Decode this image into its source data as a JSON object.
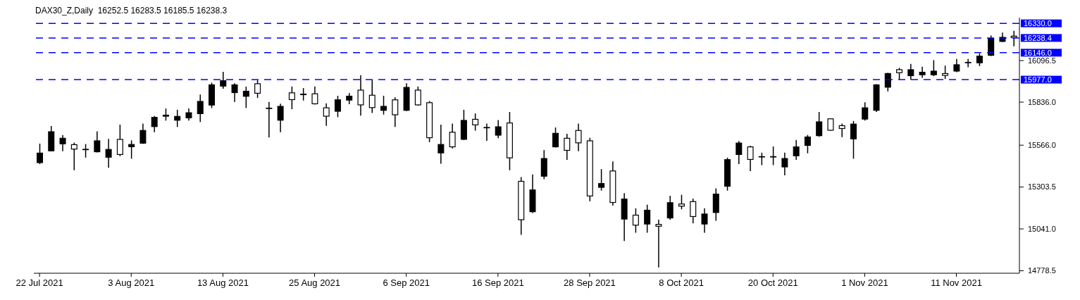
{
  "chart_data": {
    "type": "candlestick",
    "title": "DAX30_Z,Daily  16252.5 16283.5 16185.5 16238.3",
    "categories": [
      "22 Jul 2021",
      null,
      null,
      null,
      null,
      null,
      null,
      null,
      "3 Aug 2021",
      null,
      null,
      null,
      null,
      null,
      null,
      null,
      "13 Aug 2021",
      null,
      null,
      null,
      null,
      null,
      null,
      null,
      "25 Aug 2021",
      null,
      null,
      null,
      null,
      null,
      null,
      null,
      "6 Sep 2021",
      null,
      null,
      null,
      null,
      null,
      null,
      null,
      "16 Sep 2021",
      null,
      null,
      null,
      null,
      null,
      null,
      null,
      "28 Sep 2021",
      null,
      null,
      null,
      null,
      null,
      null,
      null,
      "8 Oct 2021",
      null,
      null,
      null,
      null,
      null,
      null,
      null,
      "20 Oct 2021",
      null,
      null,
      null,
      null,
      null,
      null,
      null,
      "1 Nov 2021",
      null,
      null,
      null,
      null,
      null,
      null,
      null,
      "11 Nov 2021",
      null,
      null,
      null,
      null,
      null
    ],
    "ohlc": [
      [
        15454,
        15576,
        15447,
        15519
      ],
      [
        15528,
        15686,
        15528,
        15653
      ],
      [
        15572,
        15630,
        15528,
        15612
      ],
      [
        15572,
        15582,
        15409,
        15539
      ],
      [
        15543,
        15573,
        15488,
        15541
      ],
      [
        15522,
        15653,
        15520,
        15596
      ],
      [
        15488,
        15605,
        15424,
        15542
      ],
      [
        15605,
        15695,
        15497,
        15505
      ],
      [
        15554,
        15596,
        15481,
        15573
      ],
      [
        15576,
        15701,
        15574,
        15661
      ],
      [
        15680,
        15749,
        15647,
        15743
      ],
      [
        15745,
        15796,
        15720,
        15757
      ],
      [
        15720,
        15788,
        15680,
        15749
      ],
      [
        15735,
        15796,
        15720,
        15772
      ],
      [
        15761,
        15884,
        15711,
        15843
      ],
      [
        15815,
        15958,
        15799,
        15947
      ],
      [
        15934,
        16026,
        15920,
        15973
      ],
      [
        15893,
        15954,
        15837,
        15947
      ],
      [
        15870,
        15934,
        15799,
        15907
      ],
      [
        15954,
        15974,
        15862,
        15889
      ],
      [
        15801,
        15837,
        15614,
        15799
      ],
      [
        15720,
        15826,
        15647,
        15812
      ],
      [
        15897,
        15934,
        15792,
        15849
      ],
      [
        15880,
        15924,
        15846,
        15889
      ],
      [
        15891,
        15934,
        15821,
        15823
      ],
      [
        15803,
        15828,
        15687,
        15745
      ],
      [
        15776,
        15876,
        15742,
        15853
      ],
      [
        15846,
        15893,
        15823,
        15876
      ],
      [
        15914,
        16005,
        15751,
        15816
      ],
      [
        15882,
        15974,
        15768,
        15799
      ],
      [
        15782,
        15876,
        15758,
        15812
      ],
      [
        15853,
        15866,
        15680,
        15754
      ],
      [
        15782,
        15954,
        15780,
        15931
      ],
      [
        15914,
        15934,
        15814,
        15816
      ],
      [
        15835,
        15843,
        15585,
        15610
      ],
      [
        15515,
        15695,
        15450,
        15573
      ],
      [
        15650,
        15701,
        15546,
        15553
      ],
      [
        15600,
        15788,
        15598,
        15724
      ],
      [
        15731,
        15765,
        15657,
        15691
      ],
      [
        15680,
        15701,
        15593,
        15678
      ],
      [
        15626,
        15724,
        15610,
        15684
      ],
      [
        15708,
        15774,
        15409,
        15484
      ],
      [
        15342,
        15366,
        15004,
        15096
      ],
      [
        15146,
        15382,
        15141,
        15288
      ],
      [
        15369,
        15535,
        15353,
        15485
      ],
      [
        15553,
        15677,
        15551,
        15643
      ],
      [
        15612,
        15637,
        15474,
        15531
      ],
      [
        15661,
        15701,
        15528,
        15578
      ],
      [
        15596,
        15612,
        15214,
        15245
      ],
      [
        15299,
        15416,
        15281,
        15328
      ],
      [
        15407,
        15464,
        15187,
        15204
      ],
      [
        15100,
        15265,
        14965,
        15231
      ],
      [
        15130,
        15170,
        15017,
        15062
      ],
      [
        15069,
        15193,
        15017,
        15161
      ],
      [
        15072,
        15099,
        14799,
        15055
      ],
      [
        15107,
        15249,
        15099,
        15208
      ],
      [
        15200,
        15255,
        15164,
        15181
      ],
      [
        15215,
        15231,
        15076,
        15116
      ],
      [
        15069,
        15170,
        15017,
        15137
      ],
      [
        15141,
        15295,
        15092,
        15262
      ],
      [
        15306,
        15488,
        15281,
        15478
      ],
      [
        15505,
        15592,
        15447,
        15582
      ],
      [
        15558,
        15562,
        15403,
        15474
      ],
      [
        15497,
        15519,
        15441,
        15495
      ],
      [
        15495,
        15558,
        15441,
        15497
      ],
      [
        15427,
        15519,
        15377,
        15485
      ],
      [
        15497,
        15599,
        15474,
        15558
      ],
      [
        15562,
        15630,
        15515,
        15620
      ],
      [
        15623,
        15774,
        15619,
        15715
      ],
      [
        15734,
        15734,
        15657,
        15657
      ],
      [
        15691,
        15701,
        15616,
        15668
      ],
      [
        15603,
        15718,
        15481,
        15701
      ],
      [
        15727,
        15835,
        15720,
        15803
      ],
      [
        15782,
        15949,
        15774,
        15947
      ],
      [
        15927,
        16020,
        15903,
        16018
      ],
      [
        16042,
        16051,
        15977,
        16018
      ],
      [
        15999,
        16076,
        15977,
        16042
      ],
      [
        16005,
        16058,
        15988,
        16026
      ],
      [
        16005,
        16099,
        15999,
        16033
      ],
      [
        16018,
        16065,
        15981,
        16001
      ],
      [
        16028,
        16107,
        16024,
        16073
      ],
      [
        16086,
        16107,
        16055,
        16088
      ],
      [
        16080,
        16141,
        16062,
        16127
      ],
      [
        16127,
        16254,
        16125,
        16238
      ],
      [
        16214,
        16272,
        16212,
        16245
      ],
      [
        16252.5,
        16283.5,
        16185.5,
        16238.3
      ]
    ],
    "color": "#000000",
    "ylim": [
      14763,
      16366
    ],
    "yticks": [
      {
        "value": 14778.5,
        "label": "14778.5"
      },
      {
        "value": 15041,
        "label": "15041.0"
      },
      {
        "value": 15303.5,
        "label": "15303.5"
      },
      {
        "value": 15566,
        "label": "15566.0"
      },
      {
        "value": 15836,
        "label": "15836.0"
      },
      {
        "value": 16096.5,
        "label": "16096.5"
      }
    ],
    "ref_lines": [
      {
        "axis": "y",
        "value": 16330,
        "label": "16330.0",
        "color": "#0000ff",
        "line_style": "dashed"
      },
      {
        "axis": "y",
        "value": 16238.4,
        "label": "16238.4",
        "color": "#0000ff",
        "line_style": "dashed"
      },
      {
        "axis": "y",
        "value": 16146,
        "label": "16146.0",
        "color": "#0000ff",
        "line_style": "dashed"
      },
      {
        "axis": "y",
        "value": 15977,
        "label": "15977.0",
        "color": "#0000ff",
        "line_style": "dashed"
      }
    ]
  }
}
